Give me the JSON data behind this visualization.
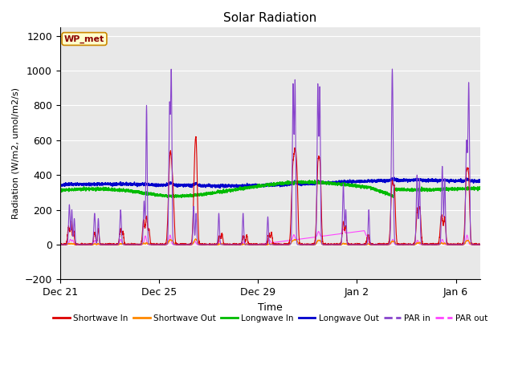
{
  "title": "Solar Radiation",
  "xlabel": "Time",
  "ylabel": "Radiation (W/m2, umol/m2/s)",
  "ylim": [
    -200,
    1250
  ],
  "yticks": [
    -200,
    0,
    200,
    400,
    600,
    800,
    1000,
    1200
  ],
  "fig_bg_color": "#ffffff",
  "plot_bg_color": "#e8e8e8",
  "legend_label": "WP_met",
  "series": {
    "Shortwave In": {
      "color": "#dd0000",
      "lw": 0.8
    },
    "Shortwave Out": {
      "color": "#ff8800",
      "lw": 0.8
    },
    "Longwave In": {
      "color": "#00bb00",
      "lw": 1.0
    },
    "Longwave Out": {
      "color": "#0000cc",
      "lw": 1.0
    },
    "PAR in": {
      "color": "#8844cc",
      "lw": 0.8
    },
    "PAR out": {
      "color": "#ff44ff",
      "lw": 0.8
    }
  },
  "xtick_labels": [
    "Dec 21",
    "Dec 25",
    "Dec 29",
    "Jan 2",
    "Jan 6"
  ],
  "xtick_positions": [
    0,
    4,
    8,
    12,
    16
  ]
}
